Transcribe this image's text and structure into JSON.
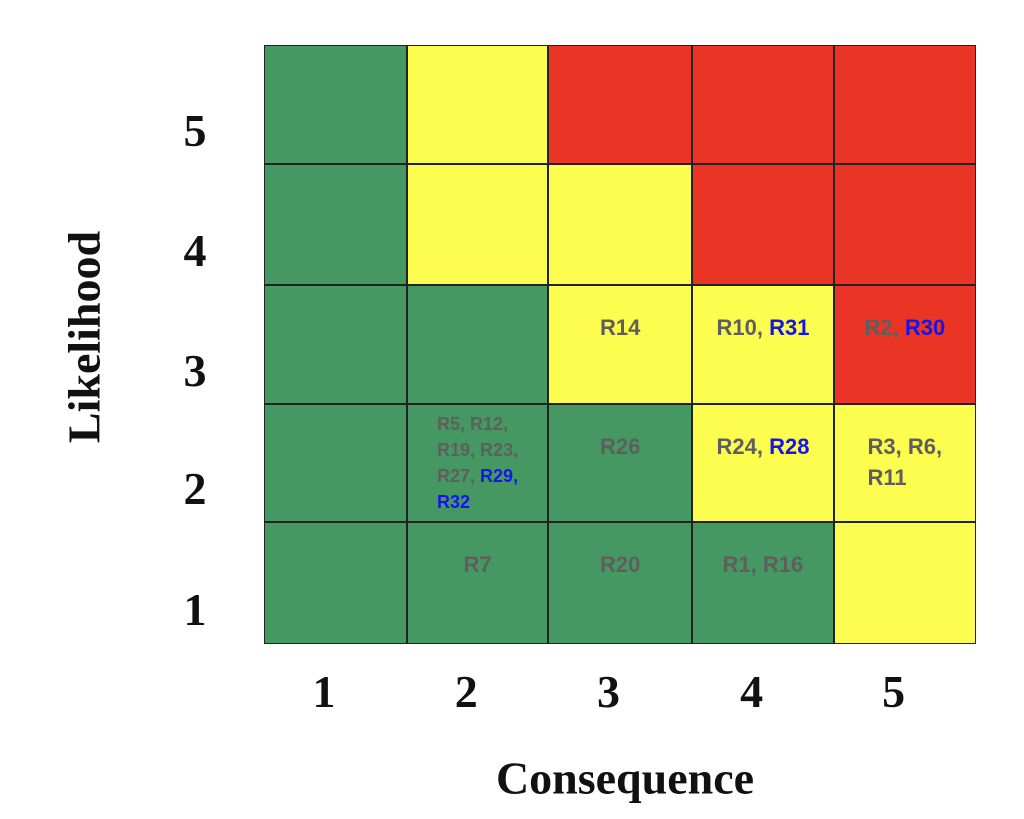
{
  "chart_data": {
    "type": "heatmap",
    "title": "",
    "xlabel": "Consequence",
    "ylabel": "Likelihood",
    "x_categories": [
      "1",
      "2",
      "3",
      "4",
      "5"
    ],
    "y_categories": [
      "1",
      "2",
      "3",
      "4",
      "5"
    ],
    "legend": "none",
    "colors": {
      "green": "#469862",
      "yellow": "#fdfd4f",
      "red": "#e93426",
      "risk_text": "#5e5e5e",
      "new_risk_text": "#1515e8"
    },
    "matrix_colors": [
      [
        "green",
        "yellow",
        "red",
        "red",
        "red"
      ],
      [
        "green",
        "yellow",
        "yellow",
        "red",
        "red"
      ],
      [
        "green",
        "green",
        "yellow",
        "yellow",
        "red"
      ],
      [
        "green",
        "green",
        "green",
        "yellow",
        "yellow"
      ],
      [
        "green",
        "green",
        "green",
        "green",
        "yellow"
      ]
    ],
    "cells": [
      {
        "likelihood": 3,
        "consequence": 3,
        "risks": [
          {
            "id": "R14",
            "new": false
          }
        ]
      },
      {
        "likelihood": 3,
        "consequence": 4,
        "risks": [
          {
            "id": "R10",
            "new": false
          },
          {
            "id": "R31",
            "new": true
          }
        ]
      },
      {
        "likelihood": 3,
        "consequence": 5,
        "risks": [
          {
            "id": "R2",
            "new": false
          },
          {
            "id": "R30",
            "new": true
          }
        ]
      },
      {
        "likelihood": 2,
        "consequence": 2,
        "risks": [
          {
            "id": "R5",
            "new": false
          },
          {
            "id": "R12",
            "new": false
          },
          {
            "id": "R19",
            "new": false
          },
          {
            "id": "R23",
            "new": false
          },
          {
            "id": "R27",
            "new": false
          },
          {
            "id": "R29",
            "new": true
          },
          {
            "id": "R32",
            "new": true
          }
        ]
      },
      {
        "likelihood": 2,
        "consequence": 3,
        "risks": [
          {
            "id": "R26",
            "new": false
          }
        ]
      },
      {
        "likelihood": 2,
        "consequence": 4,
        "risks": [
          {
            "id": "R24",
            "new": false
          },
          {
            "id": "R28",
            "new": true
          }
        ]
      },
      {
        "likelihood": 2,
        "consequence": 5,
        "risks": [
          {
            "id": "R3",
            "new": false
          },
          {
            "id": "R6",
            "new": false
          },
          {
            "id": "R11",
            "new": false
          }
        ]
      },
      {
        "likelihood": 1,
        "consequence": 2,
        "risks": [
          {
            "id": "R7",
            "new": false
          }
        ]
      },
      {
        "likelihood": 1,
        "consequence": 3,
        "risks": [
          {
            "id": "R20",
            "new": false
          }
        ]
      },
      {
        "likelihood": 1,
        "consequence": 4,
        "risks": [
          {
            "id": "R1",
            "new": false
          },
          {
            "id": "R16",
            "new": false
          }
        ]
      }
    ]
  }
}
